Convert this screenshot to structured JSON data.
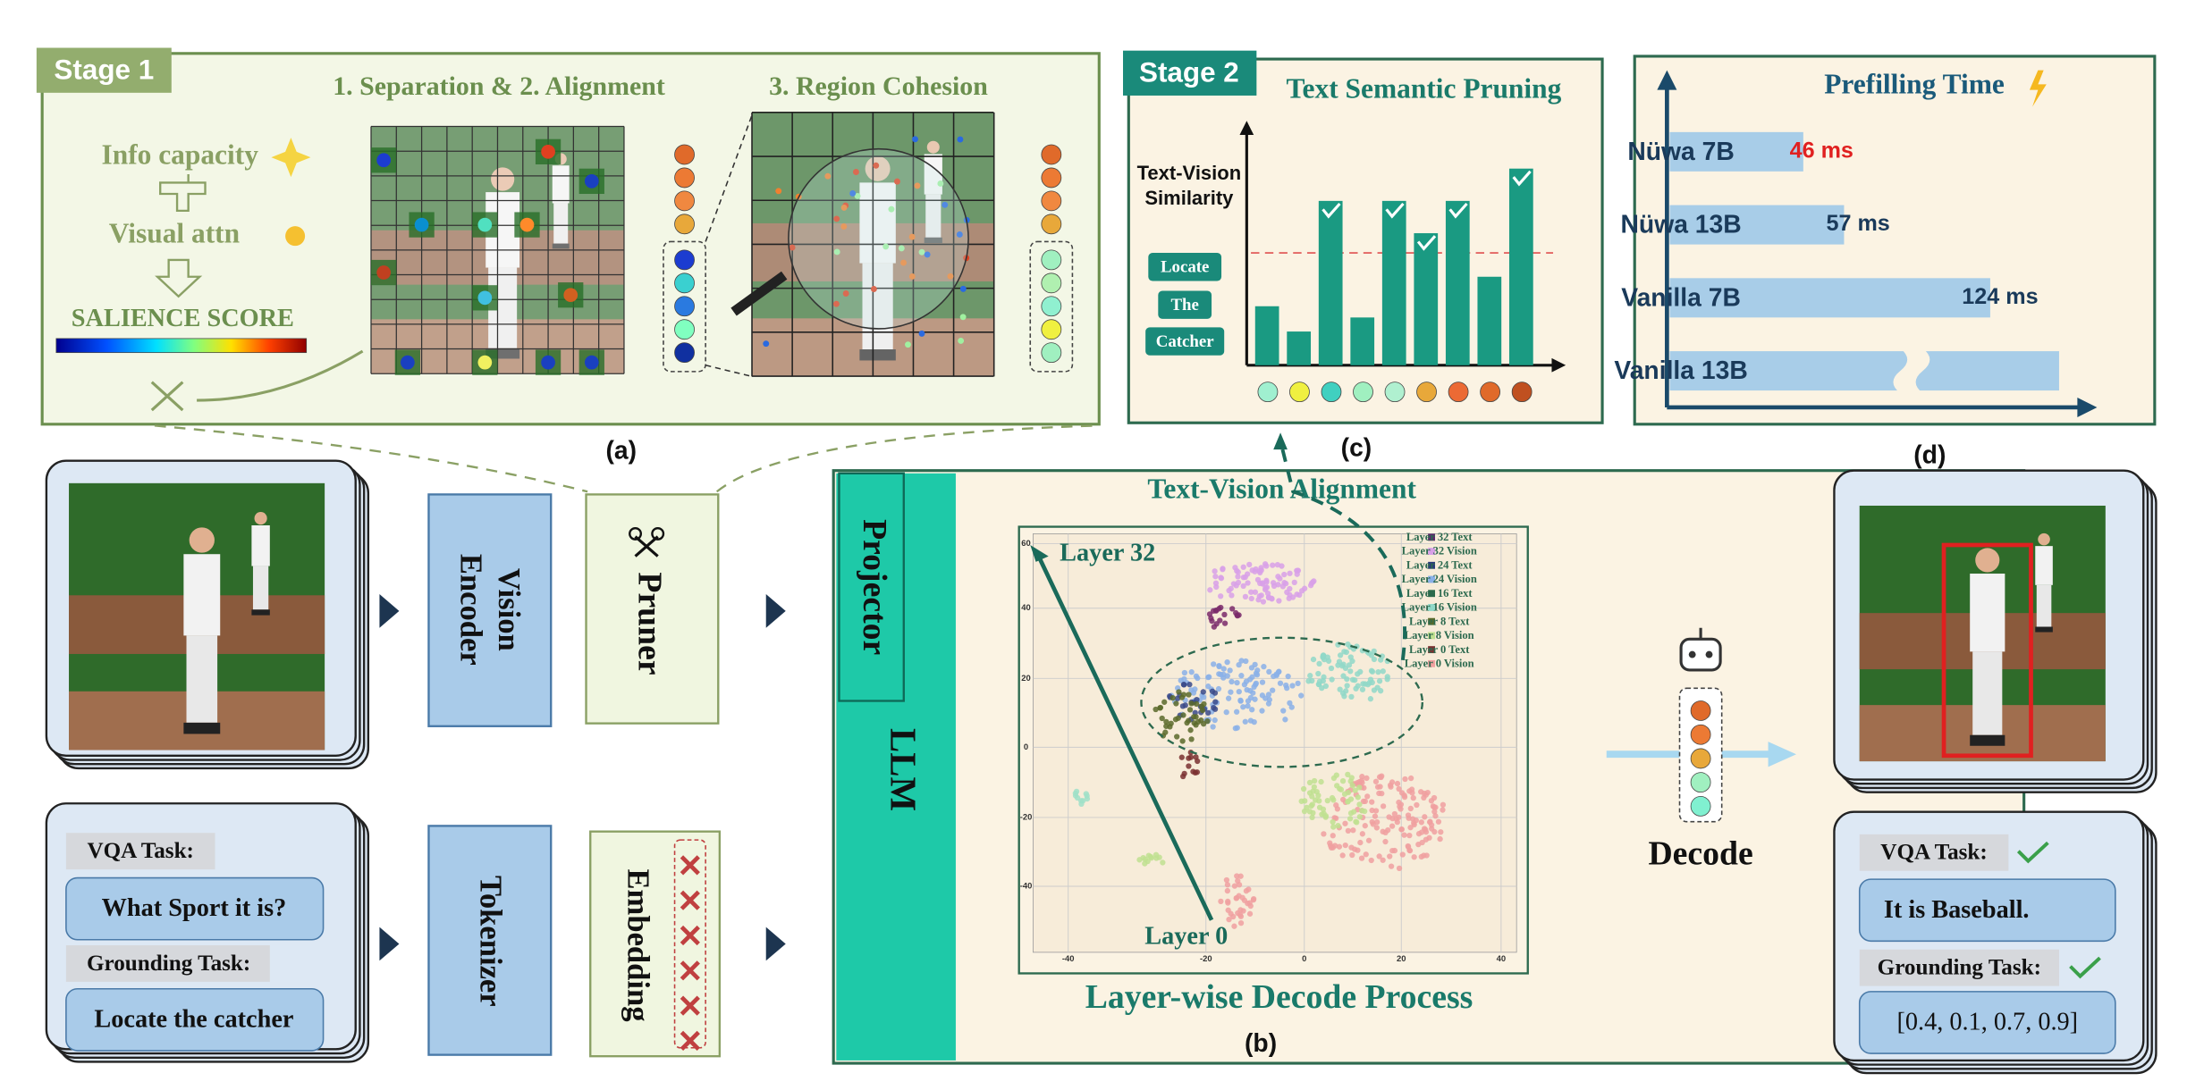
{
  "stage1": {
    "badge": "Stage 1",
    "heading_left": "1. Separation & 2. Alignment",
    "heading_right": "3. Region Cohesion",
    "info": "Info capacity",
    "visual": "Visual attn",
    "score": "SALIENCE SCORE",
    "caption": "(a)"
  },
  "stage2": {
    "badge": "Stage 2",
    "title": "Text Semantic Pruning",
    "ylabel": [
      "Text-Vision",
      "Similarity"
    ],
    "tokens": [
      "Locate",
      "The",
      "Catcher"
    ],
    "caption": "(c)"
  },
  "prefill": {
    "title": "Prefilling Time",
    "rows": [
      {
        "model": "Nüwa 7B",
        "time": "46 ms"
      },
      {
        "model": "Nüwa 13B",
        "time": "57 ms"
      },
      {
        "model": "Vanilla 7B",
        "time": "124 ms"
      },
      {
        "model": "Vanilla 13B"
      }
    ],
    "caption": "(d)"
  },
  "pipeline": {
    "vision_encoder": [
      "Vision",
      "Encoder"
    ],
    "pruner": "Pruner",
    "tokenizer": "Tokenizer",
    "embedding": "Embedding",
    "projector": "Projector",
    "llm": "LLM"
  },
  "input": {
    "vqa_label": "VQA Task:",
    "vqa_question": "What Sport it is?",
    "grounding_label": "Grounding Task:",
    "grounding_query": "Locate the catcher"
  },
  "plot": {
    "title": "Text-Vision Alignment",
    "layer_top": "Layer 32",
    "layer_bottom": "Layer 0",
    "legend": [
      "Layer 32 Text",
      "Layer 32 Vision",
      "Layer 24 Text",
      "Layer 24 Vision",
      "Layer 16 Text",
      "Layer 16 Vision",
      "Layer 8 Text",
      "Layer 8 Vision",
      "Layer 0 Text",
      "Layer 0 Vision"
    ],
    "xticks": [
      "-40",
      "-20",
      "0",
      "20",
      "40"
    ],
    "yticks": [
      "60",
      "40",
      "20",
      "0",
      "-20",
      "-40"
    ],
    "footer": "Layer-wise Decode Process",
    "caption": "(b)"
  },
  "output": {
    "decode": "Decode",
    "vqa_label": "VQA Task:",
    "vqa_answer": "It is Baseball.",
    "grounding_label": "Grounding Task:",
    "grounding_answer": "[0.4, 0.1, 0.7, 0.9]"
  }
}
